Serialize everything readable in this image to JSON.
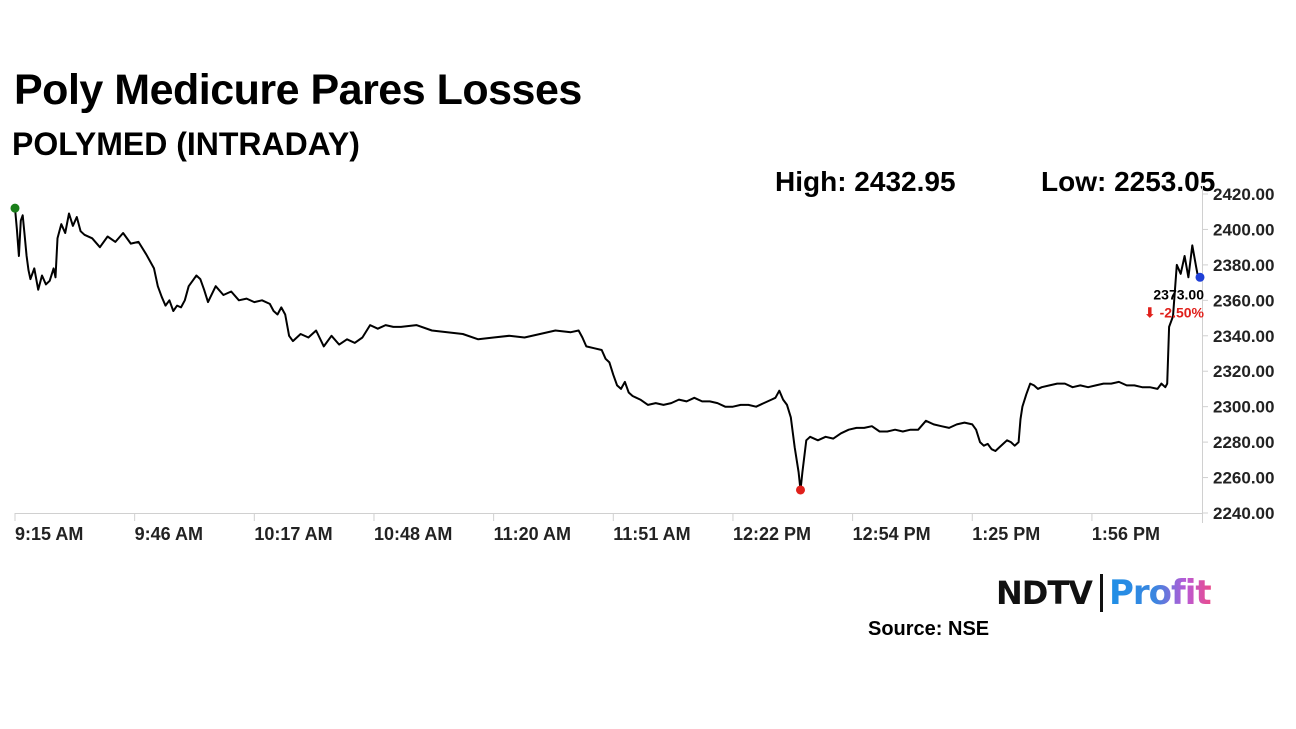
{
  "title": "Poly Medicure Pares Losses",
  "subtitle": "POLYMED (INTRADAY)",
  "stats": {
    "high": "High: 2432.95",
    "low": "Low: 2253.05"
  },
  "source": "Source: NSE",
  "logo": {
    "ndtv": "NDTV",
    "profit": "Profit"
  },
  "chart_data": {
    "type": "line",
    "x_ticks": [
      "9:15 AM",
      "9:46 AM",
      "10:17 AM",
      "10:48 AM",
      "11:20 AM",
      "11:51 AM",
      "12:22 PM",
      "12:54 PM",
      "1:25 PM",
      "1:56 PM"
    ],
    "y_ticks": [
      "2420.00",
      "2400.00",
      "2380.00",
      "2360.00",
      "2340.00",
      "2320.00",
      "2300.00",
      "2280.00",
      "2260.00",
      "2240.00"
    ],
    "ylim": [
      2240,
      2420
    ],
    "x_domain_minutes": [
      0,
      307
    ],
    "series": [
      {
        "points": [
          [
            0,
            2412
          ],
          [
            0.5,
            2400
          ],
          [
            1,
            2385
          ],
          [
            1.5,
            2405
          ],
          [
            2,
            2408
          ],
          [
            2.5,
            2397
          ],
          [
            3,
            2385
          ],
          [
            3.5,
            2377
          ],
          [
            4,
            2372
          ],
          [
            5,
            2378
          ],
          [
            6,
            2366
          ],
          [
            7,
            2374
          ],
          [
            8,
            2369
          ],
          [
            9,
            2371
          ],
          [
            10,
            2378
          ],
          [
            10.5,
            2373
          ],
          [
            11,
            2395
          ],
          [
            12,
            2403
          ],
          [
            13,
            2398
          ],
          [
            14,
            2409
          ],
          [
            15,
            2402
          ],
          [
            16,
            2407
          ],
          [
            17,
            2399
          ],
          [
            18,
            2397
          ],
          [
            20,
            2395
          ],
          [
            22,
            2390
          ],
          [
            24,
            2396
          ],
          [
            26,
            2393
          ],
          [
            28,
            2398
          ],
          [
            30,
            2392
          ],
          [
            32,
            2393
          ],
          [
            34,
            2386
          ],
          [
            36,
            2378
          ],
          [
            37,
            2368
          ],
          [
            38,
            2362
          ],
          [
            39,
            2357
          ],
          [
            40,
            2360
          ],
          [
            41,
            2354
          ],
          [
            42,
            2357
          ],
          [
            43,
            2356
          ],
          [
            44,
            2360
          ],
          [
            45,
            2368
          ],
          [
            46,
            2371
          ],
          [
            47,
            2374
          ],
          [
            48,
            2372
          ],
          [
            49,
            2366
          ],
          [
            50,
            2359
          ],
          [
            52,
            2368
          ],
          [
            54,
            2363
          ],
          [
            56,
            2365
          ],
          [
            58,
            2360
          ],
          [
            60,
            2361
          ],
          [
            62,
            2359
          ],
          [
            64,
            2360
          ],
          [
            66,
            2358
          ],
          [
            67,
            2354
          ],
          [
            68,
            2352
          ],
          [
            69,
            2356
          ],
          [
            70,
            2352
          ],
          [
            71,
            2340
          ],
          [
            72,
            2337
          ],
          [
            74,
            2341
          ],
          [
            76,
            2339
          ],
          [
            78,
            2343
          ],
          [
            80,
            2334
          ],
          [
            82,
            2340
          ],
          [
            84,
            2335
          ],
          [
            86,
            2338
          ],
          [
            88,
            2336
          ],
          [
            90,
            2339
          ],
          [
            92,
            2346
          ],
          [
            94,
            2344
          ],
          [
            96,
            2346
          ],
          [
            98,
            2345
          ],
          [
            100,
            2345
          ],
          [
            104,
            2346
          ],
          [
            108,
            2343
          ],
          [
            112,
            2342
          ],
          [
            116,
            2341
          ],
          [
            120,
            2338
          ],
          [
            124,
            2339
          ],
          [
            128,
            2340
          ],
          [
            132,
            2339
          ],
          [
            136,
            2341
          ],
          [
            140,
            2343
          ],
          [
            144,
            2342
          ],
          [
            146,
            2343
          ],
          [
            147,
            2339
          ],
          [
            148,
            2334
          ],
          [
            150,
            2333
          ],
          [
            152,
            2332
          ],
          [
            153,
            2327
          ],
          [
            154,
            2325
          ],
          [
            155,
            2318
          ],
          [
            156,
            2312
          ],
          [
            157,
            2310
          ],
          [
            158,
            2314
          ],
          [
            159,
            2308
          ],
          [
            160,
            2306
          ],
          [
            162,
            2304
          ],
          [
            164,
            2301
          ],
          [
            166,
            2302
          ],
          [
            168,
            2301
          ],
          [
            170,
            2302
          ],
          [
            172,
            2304
          ],
          [
            174,
            2303
          ],
          [
            176,
            2305
          ],
          [
            178,
            2303
          ],
          [
            180,
            2303
          ],
          [
            182,
            2302
          ],
          [
            184,
            2300
          ],
          [
            186,
            2300
          ],
          [
            188,
            2301
          ],
          [
            190,
            2301
          ],
          [
            192,
            2300
          ],
          [
            194,
            2302
          ],
          [
            196,
            2304
          ],
          [
            197,
            2305
          ],
          [
            198,
            2309
          ],
          [
            199,
            2304
          ],
          [
            200,
            2301
          ],
          [
            201,
            2294
          ],
          [
            202,
            2277
          ],
          [
            203,
            2263
          ],
          [
            203.5,
            2253
          ],
          [
            204,
            2263
          ],
          [
            205,
            2281
          ],
          [
            206,
            2283
          ],
          [
            208,
            2281
          ],
          [
            210,
            2283
          ],
          [
            212,
            2282
          ],
          [
            214,
            2285
          ],
          [
            216,
            2287
          ],
          [
            218,
            2288
          ],
          [
            220,
            2288
          ],
          [
            222,
            2289
          ],
          [
            224,
            2286
          ],
          [
            226,
            2286
          ],
          [
            228,
            2287
          ],
          [
            230,
            2286
          ],
          [
            232,
            2287
          ],
          [
            234,
            2287
          ],
          [
            236,
            2292
          ],
          [
            238,
            2290
          ],
          [
            240,
            2289
          ],
          [
            242,
            2288
          ],
          [
            244,
            2290
          ],
          [
            246,
            2291
          ],
          [
            248,
            2290
          ],
          [
            249,
            2287
          ],
          [
            250,
            2280
          ],
          [
            251,
            2278
          ],
          [
            252,
            2279
          ],
          [
            253,
            2276
          ],
          [
            254,
            2275
          ],
          [
            255,
            2277
          ],
          [
            256,
            2279
          ],
          [
            257,
            2281
          ],
          [
            258,
            2280
          ],
          [
            259,
            2278
          ],
          [
            260,
            2280
          ],
          [
            260.5,
            2293
          ],
          [
            261,
            2300
          ],
          [
            262,
            2307
          ],
          [
            263,
            2313
          ],
          [
            264,
            2312
          ],
          [
            265,
            2310
          ],
          [
            266,
            2311
          ],
          [
            268,
            2312
          ],
          [
            270,
            2313
          ],
          [
            272,
            2313
          ],
          [
            274,
            2311
          ],
          [
            276,
            2312
          ],
          [
            278,
            2311
          ],
          [
            280,
            2312
          ],
          [
            282,
            2313
          ],
          [
            284,
            2313
          ],
          [
            286,
            2314
          ],
          [
            288,
            2312
          ],
          [
            290,
            2312
          ],
          [
            292,
            2311
          ],
          [
            294,
            2311
          ],
          [
            296,
            2310
          ],
          [
            297,
            2313
          ],
          [
            298,
            2311
          ],
          [
            298.5,
            2313
          ],
          [
            299,
            2345
          ],
          [
            300,
            2351
          ],
          [
            301,
            2380
          ],
          [
            302,
            2375
          ],
          [
            303,
            2385
          ],
          [
            304,
            2373
          ],
          [
            305,
            2391
          ],
          [
            306,
            2379
          ],
          [
            306.5,
            2373
          ],
          [
            307,
            2373
          ]
        ]
      }
    ],
    "markers": [
      {
        "at": [
          0,
          2412
        ],
        "color": "#1a7f1a"
      },
      {
        "at": [
          203.5,
          2253
        ],
        "color": "#e0201b"
      },
      {
        "at": [
          307,
          2373
        ],
        "color": "#1f3fd6"
      }
    ],
    "last_price_label": "2373.00",
    "last_change_label": "⬇ -2.50%",
    "line_color": "#000000",
    "axis_color": "#d0d0d0"
  }
}
